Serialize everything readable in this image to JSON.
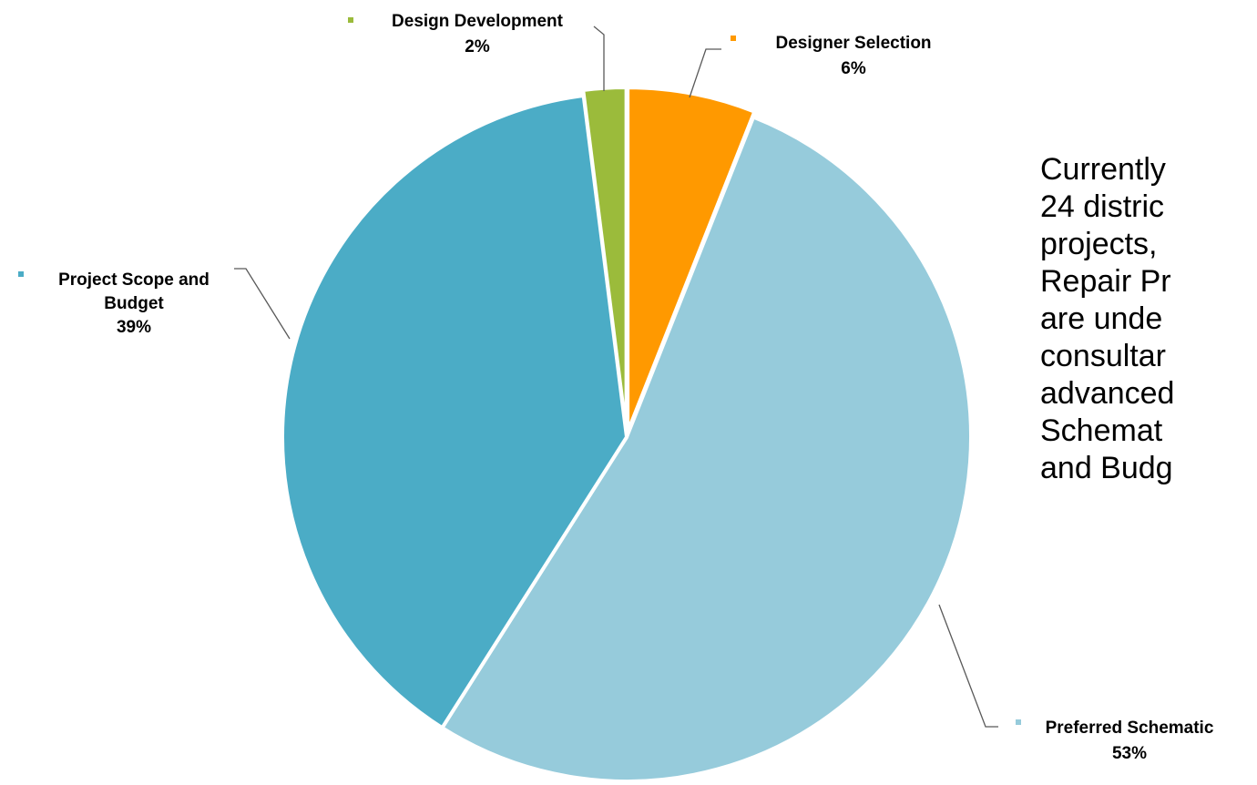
{
  "chart_data": {
    "type": "pie",
    "slices": [
      {
        "name": "Designer Selection",
        "label": "Designer Selection",
        "pct_text": "6%",
        "value": 6,
        "color": "#FF9900"
      },
      {
        "name": "Preferred Schematic",
        "label": "Preferred Schematic",
        "pct_text": "53%",
        "value": 53,
        "color": "#96CBDB"
      },
      {
        "name": "Project Scope and Budget",
        "label_lines": [
          "Project Scope and",
          "Budget"
        ],
        "pct_text": "39%",
        "value": 39,
        "color": "#4BACC6"
      },
      {
        "name": "Design Development",
        "label": "Design Development",
        "pct_text": "2%",
        "value": 2,
        "color": "#9BBB3B"
      }
    ],
    "start": "12 o'clock",
    "direction": "clockwise"
  },
  "side_text": {
    "lines": [
      "Currently",
      "24 distric",
      "projects,",
      "Repair Pr",
      "are unde",
      "consultar",
      "advanced",
      "Schemat",
      "and Budg"
    ]
  }
}
